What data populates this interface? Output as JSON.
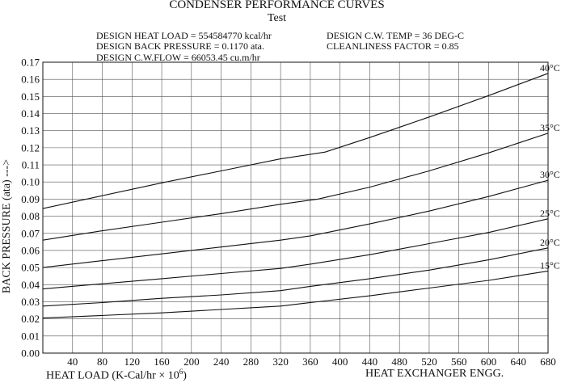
{
  "header": {
    "title": "CONDENSER PERFORMANCE CURVES",
    "subtitle": "Test",
    "design_heat_load": "DESIGN HEAT LOAD = 554584770 kcal/hr",
    "design_back_pressure": "DESIGN BACK PRESSURE = 0.1170 ata.",
    "design_cw_flow": "DESIGN C.W.FLOW = 66053.45 cu.m/hr",
    "design_cw_temp": "DESIGN C.W. TEMP = 36 DEG-C",
    "cleanliness_factor": "CLEANLINESS FACTOR = 0.85"
  },
  "footer": {
    "credit": "HEAT EXCHANGER ENGG."
  },
  "chart_data": {
    "type": "line",
    "xlabel_main": "HEAT LOAD (K-Cal/hr × 10",
    "xlabel_exp": "6",
    "xlabel_close": ")",
    "ylabel": "BACK PRESSURE (ata) --->",
    "xlim": [
      0,
      680
    ],
    "ylim": [
      0,
      0.17
    ],
    "x_ticks": [
      40,
      80,
      120,
      160,
      200,
      240,
      280,
      320,
      360,
      400,
      440,
      480,
      520,
      560,
      600,
      640,
      680
    ],
    "x_tick_labels": [
      "40",
      "80",
      "120",
      "160",
      "200",
      "240",
      "280",
      "320",
      "360",
      "400",
      "440",
      "480",
      "520",
      "560",
      "600",
      "640",
      "680"
    ],
    "y_ticks": [
      0,
      0.01,
      0.02,
      0.03,
      0.04,
      0.05,
      0.06,
      0.07,
      0.08,
      0.09,
      0.1,
      0.11,
      0.12,
      0.13,
      0.14,
      0.15,
      0.16,
      0.17
    ],
    "y_tick_labels": [
      "0.00",
      "0.01",
      "0.02",
      "0.03",
      "0.04",
      "0.05",
      "0.06",
      "0.07",
      "0.08",
      "0.09",
      "0.10",
      "0.11",
      "0.12",
      "0.13",
      "0.14",
      "0.15",
      "0.16",
      "0.17"
    ],
    "grid": true,
    "series": [
      {
        "name": "40°C",
        "x": [
          0,
          80,
          160,
          240,
          320,
          380,
          440,
          520,
          600,
          680
        ],
        "y": [
          0.0845,
          0.092,
          0.0995,
          0.1065,
          0.1135,
          0.1175,
          0.126,
          0.138,
          0.1505,
          0.1635
        ]
      },
      {
        "name": "35°C",
        "x": [
          0,
          80,
          160,
          240,
          320,
          370,
          440,
          520,
          600,
          680
        ],
        "y": [
          0.066,
          0.0715,
          0.0765,
          0.0815,
          0.087,
          0.09,
          0.097,
          0.1065,
          0.117,
          0.1285
        ]
      },
      {
        "name": "30°C",
        "x": [
          0,
          80,
          160,
          240,
          320,
          360,
          440,
          520,
          600,
          680
        ],
        "y": [
          0.05,
          0.054,
          0.058,
          0.062,
          0.066,
          0.0685,
          0.0755,
          0.083,
          0.0915,
          0.101
        ]
      },
      {
        "name": "25°C",
        "x": [
          0,
          80,
          160,
          240,
          320,
          360,
          440,
          520,
          600,
          680
        ],
        "y": [
          0.0375,
          0.0405,
          0.0435,
          0.0465,
          0.0495,
          0.052,
          0.0575,
          0.064,
          0.0705,
          0.0785
        ]
      },
      {
        "name": "20°C",
        "x": [
          0,
          80,
          160,
          240,
          320,
          360,
          440,
          520,
          600,
          680
        ],
        "y": [
          0.0275,
          0.0295,
          0.032,
          0.034,
          0.0365,
          0.039,
          0.0435,
          0.0485,
          0.0545,
          0.0615
        ]
      },
      {
        "name": "15°C",
        "x": [
          0,
          80,
          160,
          240,
          320,
          360,
          440,
          520,
          600,
          680
        ],
        "y": [
          0.0205,
          0.022,
          0.0235,
          0.0255,
          0.0275,
          0.0295,
          0.0335,
          0.038,
          0.0425,
          0.048
        ]
      }
    ]
  }
}
